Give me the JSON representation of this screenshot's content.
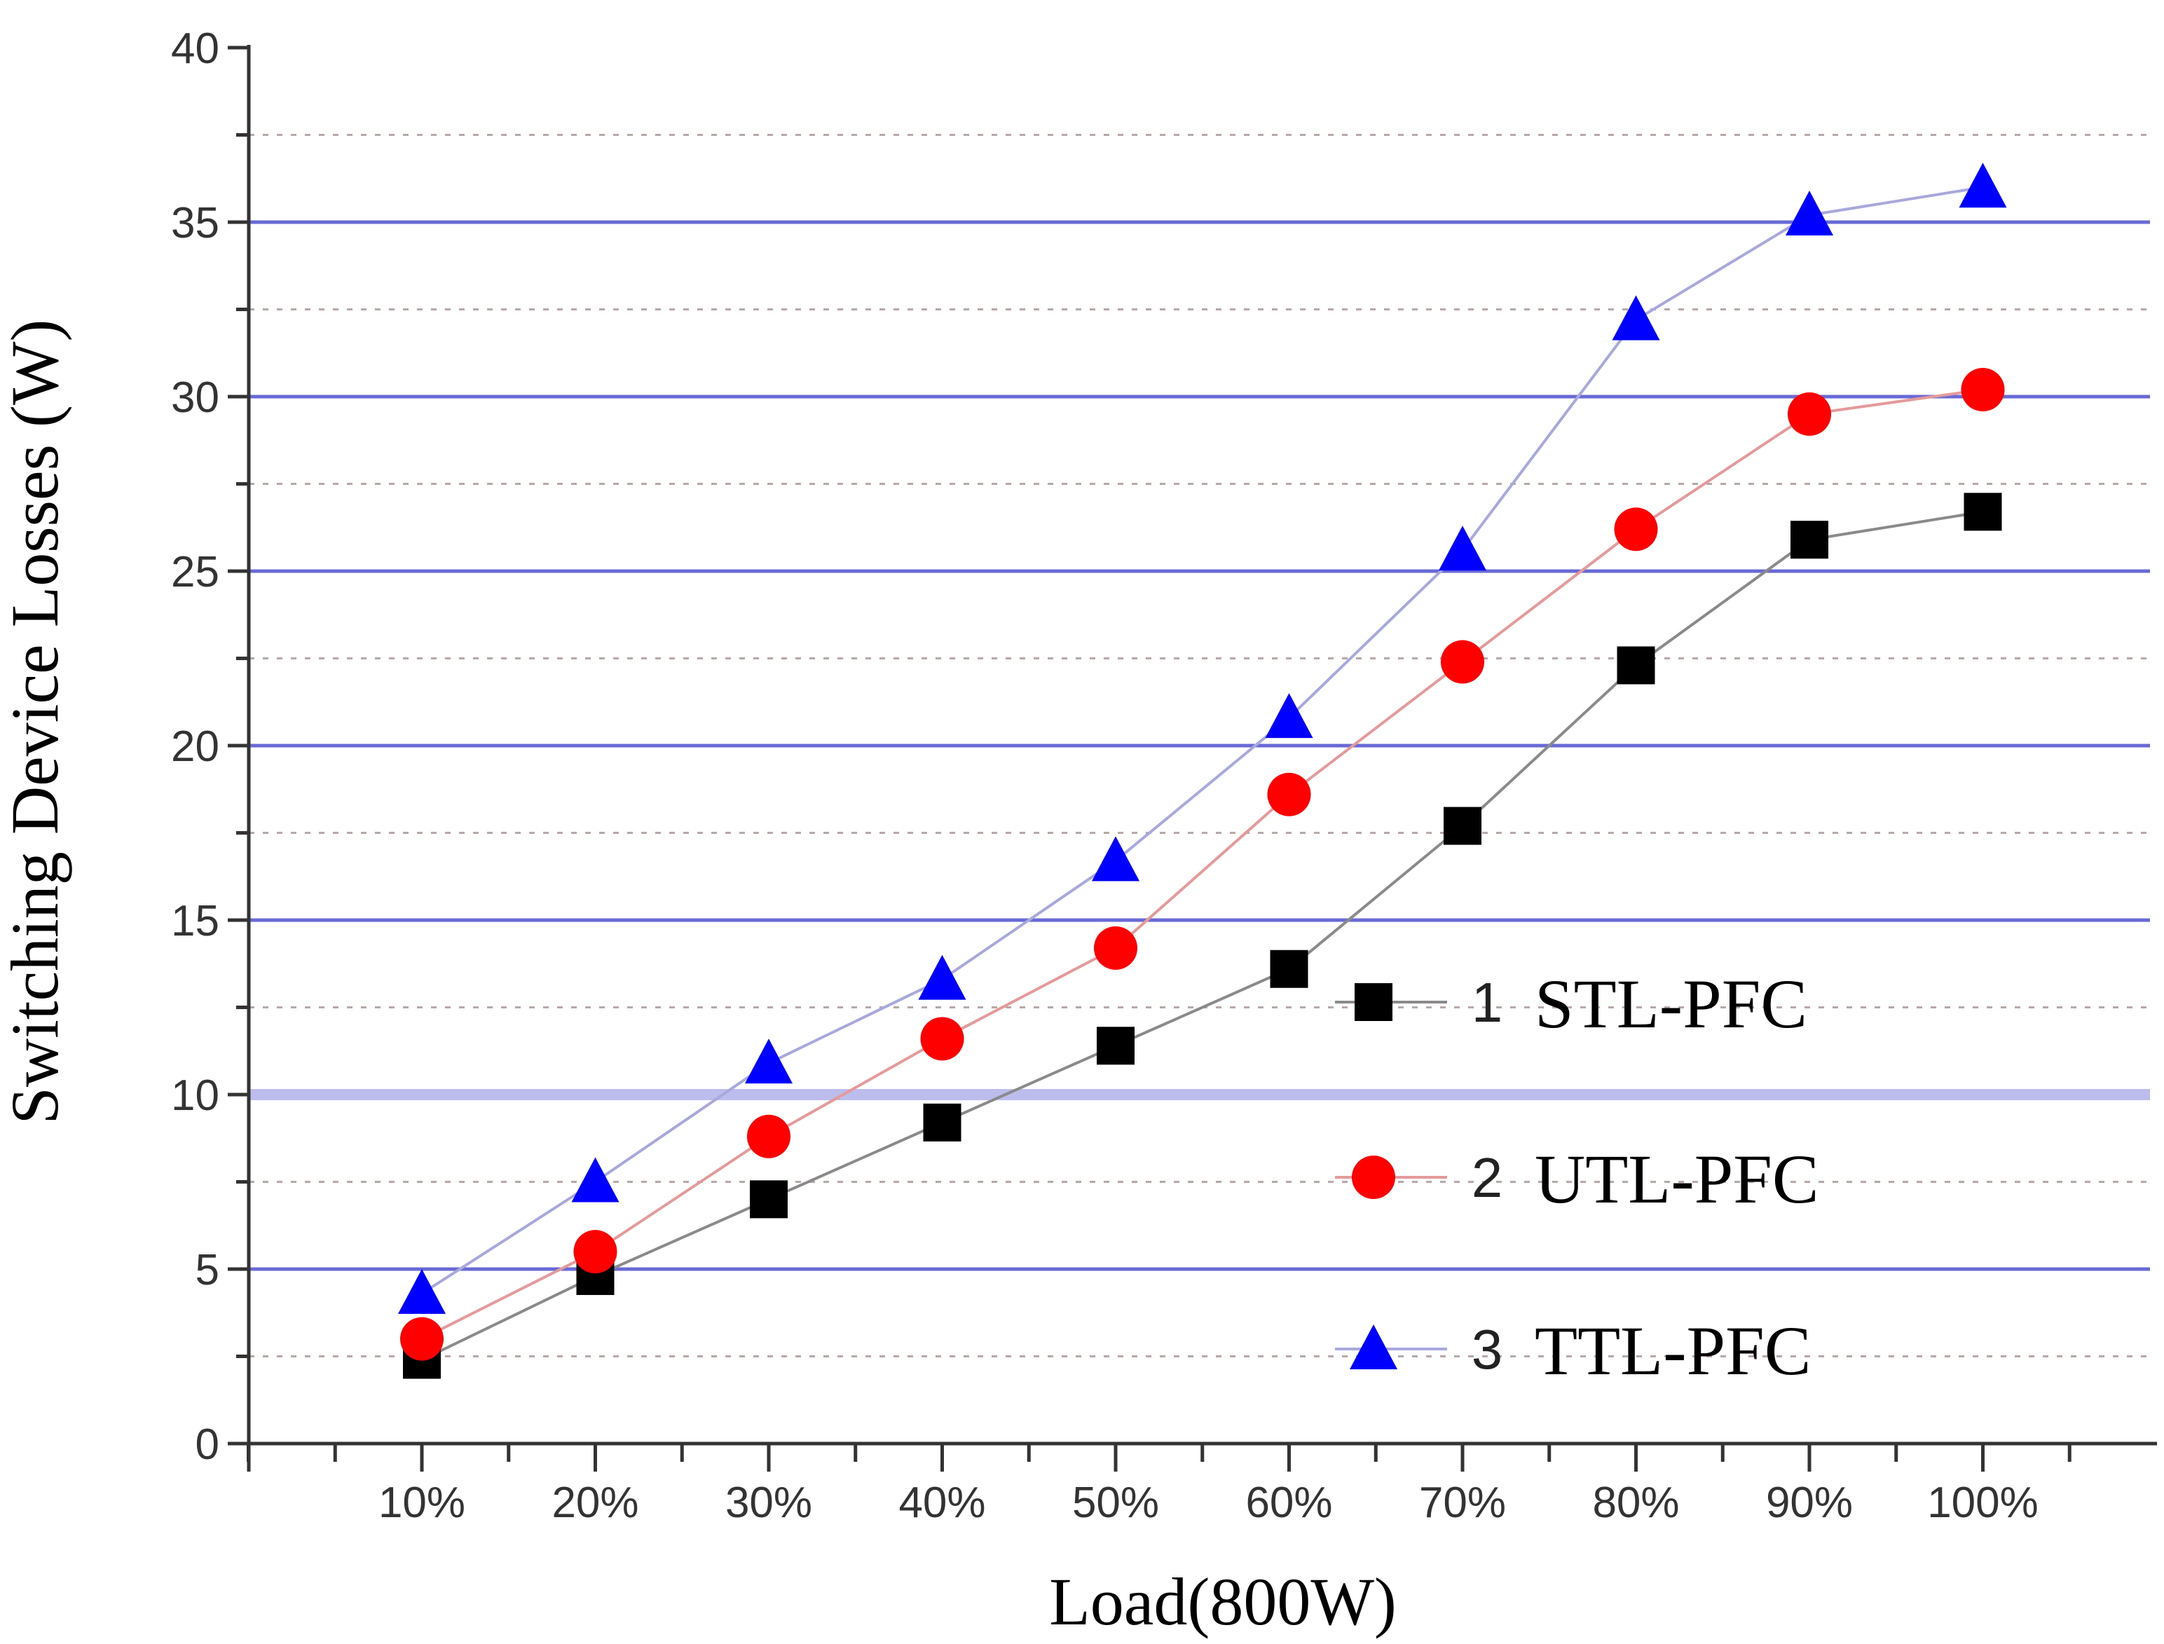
{
  "chart_data": {
    "type": "line",
    "title": "",
    "xlabel": "Load(800W)",
    "ylabel": "Switching Device Losses (W)",
    "categories": [
      "10%",
      "20%",
      "30%",
      "40%",
      "50%",
      "60%",
      "70%",
      "80%",
      "90%",
      "100%"
    ],
    "ylim": [
      0,
      40
    ],
    "yticks": [
      0,
      5,
      10,
      15,
      20,
      25,
      30,
      35,
      40
    ],
    "grid": true,
    "legend_position": "right",
    "series": [
      {
        "number": "1",
        "name": "STL-PFC",
        "marker": "square",
        "color": "#000000",
        "line_color": "#8a8a8a",
        "values": [
          2.4,
          4.8,
          7.0,
          9.2,
          11.4,
          13.6,
          17.7,
          22.3,
          25.9,
          26.7
        ]
      },
      {
        "number": "2",
        "name": "UTL-PFC",
        "marker": "circle",
        "color": "#ff0000",
        "line_color": "#e49a9a",
        "values": [
          3.0,
          5.5,
          8.8,
          11.6,
          14.2,
          18.6,
          22.4,
          26.2,
          29.5,
          30.2
        ]
      },
      {
        "number": "3",
        "name": "TTL-PFC",
        "marker": "triangle",
        "color": "#0000ff",
        "line_color": "#a8a8dc",
        "values": [
          4.3,
          7.5,
          10.9,
          13.3,
          16.7,
          20.8,
          25.6,
          32.2,
          35.2,
          36.0
        ]
      }
    ]
  }
}
